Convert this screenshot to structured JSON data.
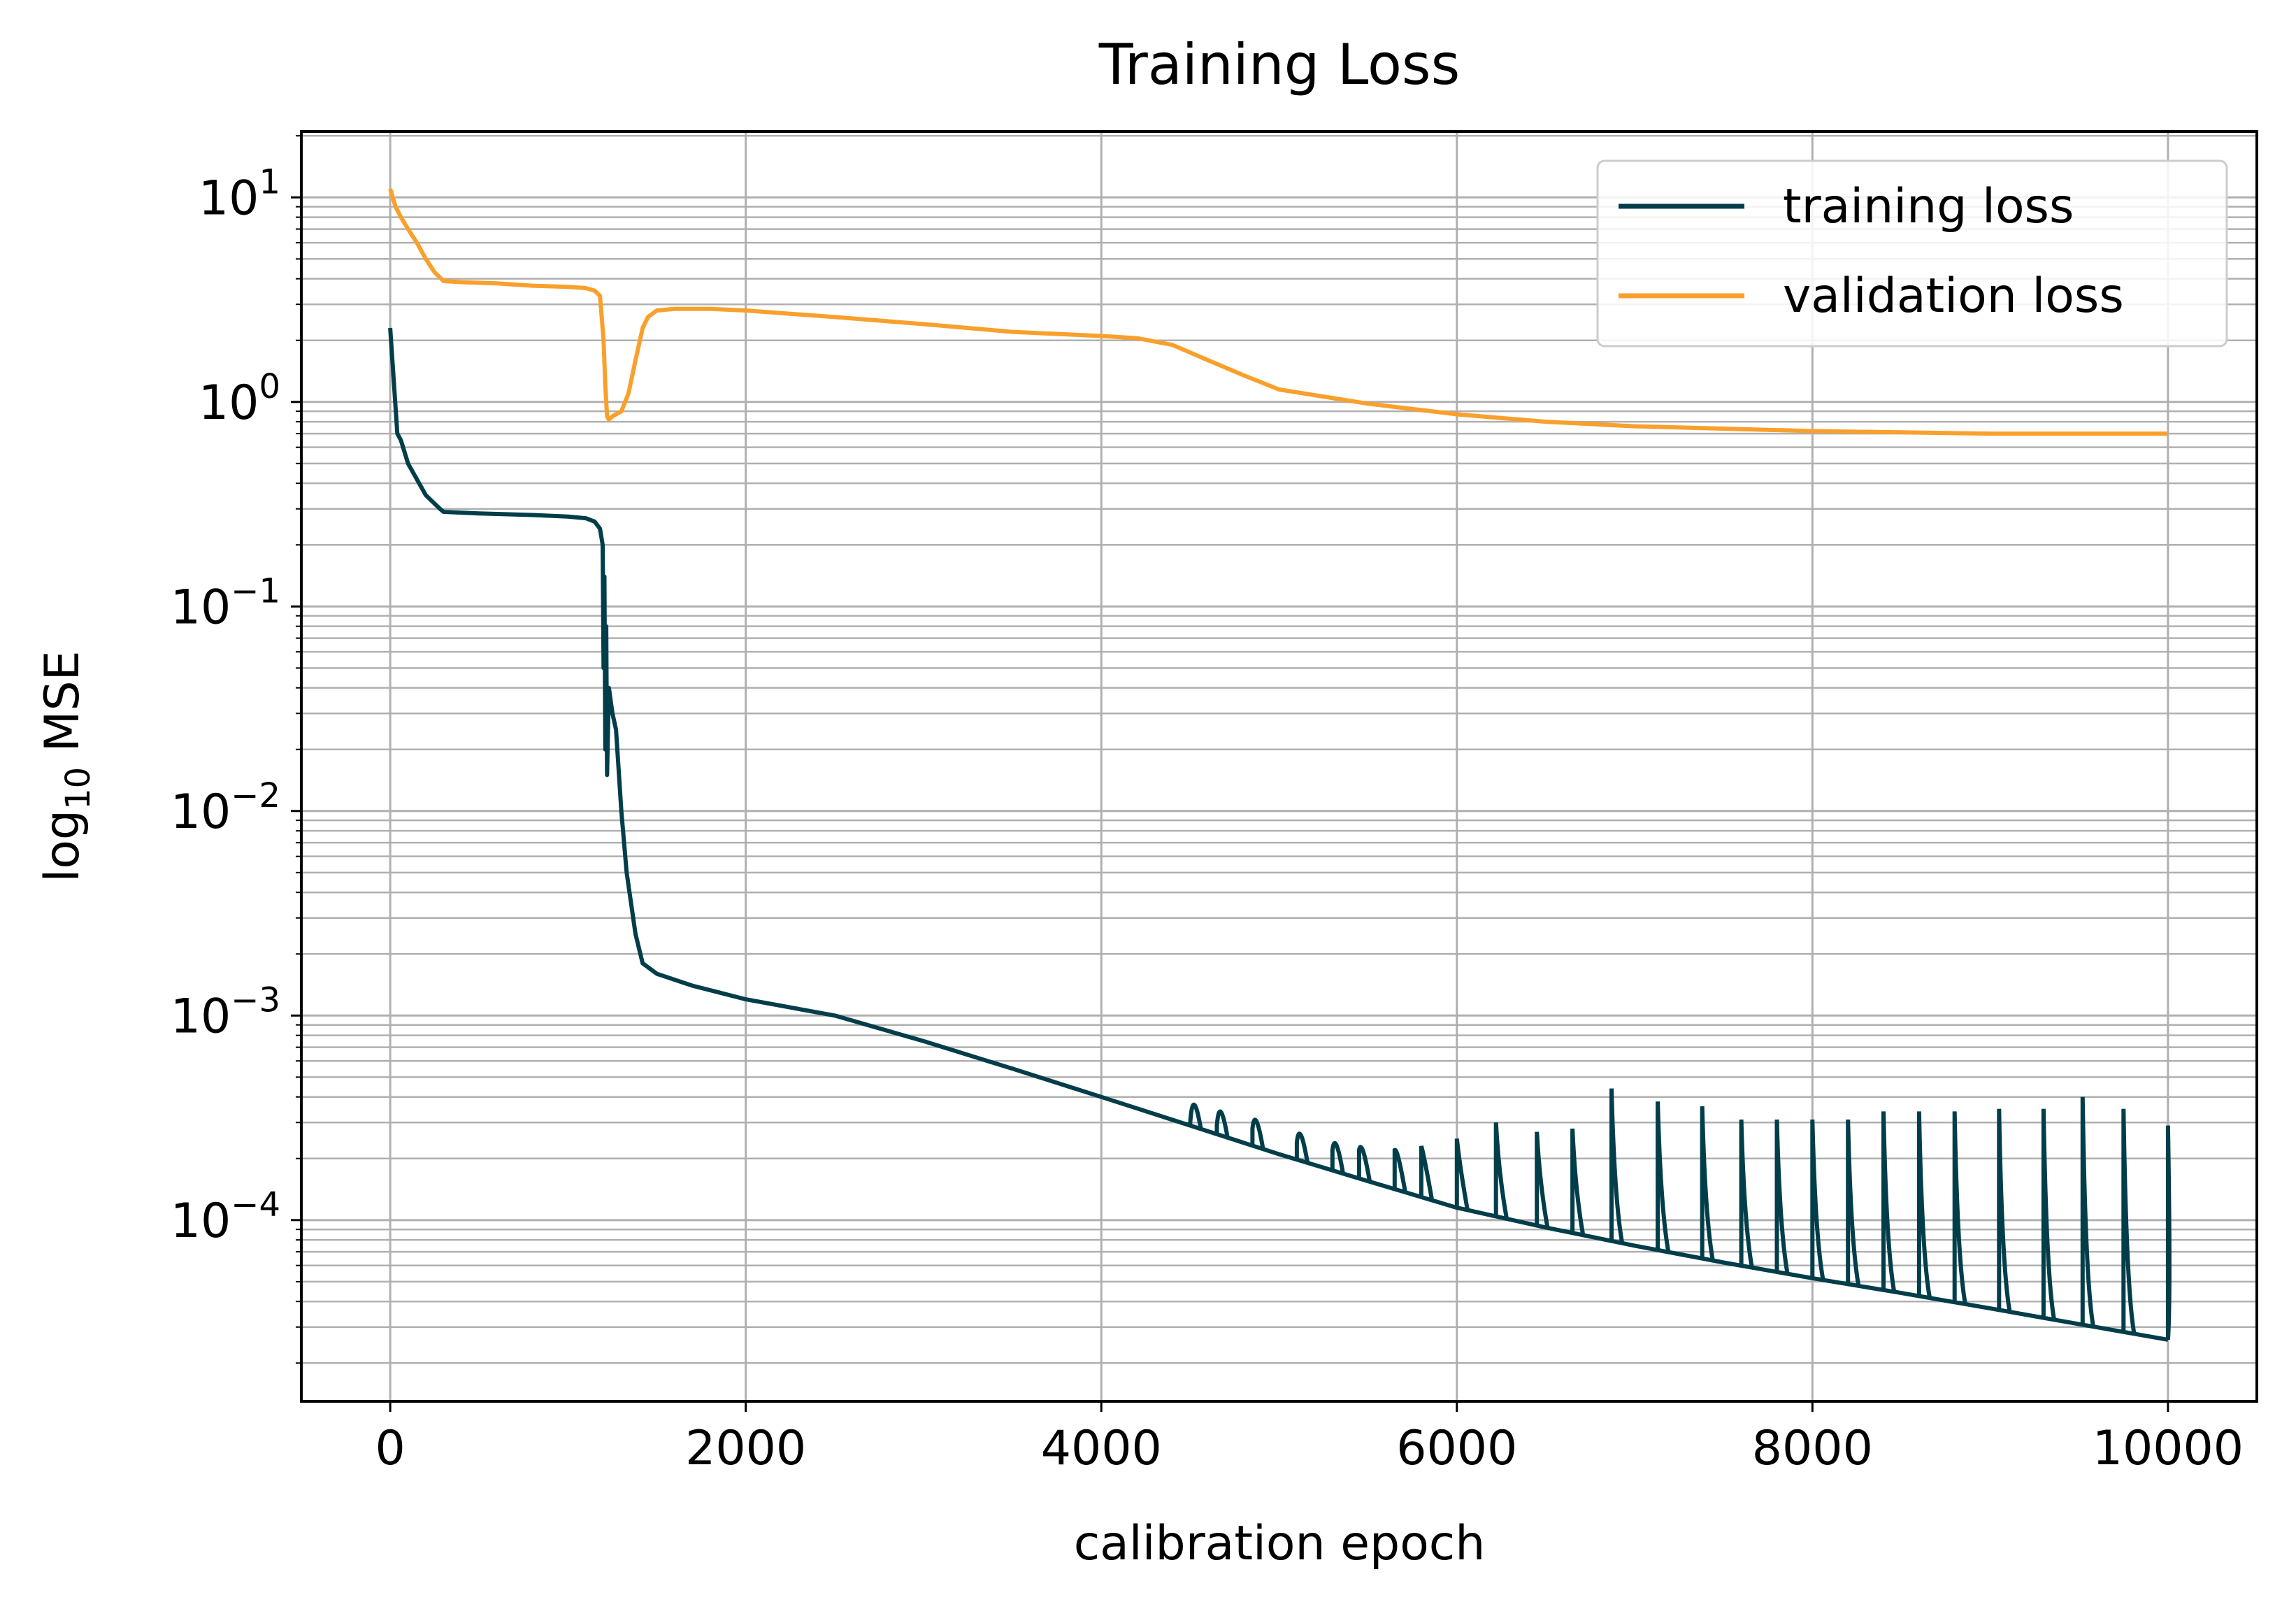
{
  "chart_data": {
    "type": "line",
    "title": "Training Loss",
    "xlabel": "calibration epoch",
    "ylabel_base": "log",
    "ylabel_sub": "10",
    "ylabel_rest": " MSE",
    "yscale": "log",
    "xlim": [
      -500,
      10500
    ],
    "ylim": [
      1.3e-05,
      21
    ],
    "grid": true,
    "legend_position": "top-right",
    "x_ticks": [
      0,
      2000,
      4000,
      6000,
      8000,
      10000
    ],
    "x_tick_labels": [
      "0",
      "2000",
      "4000",
      "6000",
      "8000",
      "10000"
    ],
    "y_ticks": [
      {
        "value": 10,
        "base": "10",
        "exp": "1"
      },
      {
        "value": 1,
        "base": "10",
        "exp": "0"
      },
      {
        "value": 0.1,
        "base": "10",
        "exp": "−1"
      },
      {
        "value": 0.01,
        "base": "10",
        "exp": "−2"
      },
      {
        "value": 0.001,
        "base": "10",
        "exp": "−3"
      },
      {
        "value": 0.0001,
        "base": "10",
        "exp": "−4"
      }
    ],
    "series": [
      {
        "name": "training loss",
        "color": "#023e4a",
        "x": [
          0,
          40,
          60,
          100,
          200,
          280,
          300,
          500,
          800,
          1000,
          1100,
          1150,
          1180,
          1195,
          1200,
          1205,
          1210,
          1215,
          1220,
          1230,
          1250,
          1270,
          1300,
          1330,
          1380,
          1420,
          1500,
          1700,
          2000,
          2500,
          3000,
          3500,
          4000,
          4500,
          5000,
          5500,
          6000,
          6500,
          7000,
          7500,
          8000,
          8500,
          9000,
          9500,
          10000
        ],
        "y": [
          2.3,
          0.7,
          0.65,
          0.5,
          0.35,
          0.3,
          0.29,
          0.285,
          0.28,
          0.275,
          0.27,
          0.26,
          0.24,
          0.2,
          0.05,
          0.14,
          0.02,
          0.08,
          0.015,
          0.04,
          0.03,
          0.025,
          0.01,
          0.005,
          0.0025,
          0.0018,
          0.0016,
          0.0014,
          0.0012,
          0.001,
          0.00075,
          0.00055,
          0.0004,
          0.00029,
          0.00021,
          0.000155,
          0.000115,
          9.2e-05,
          7.5e-05,
          6.2e-05,
          5.2e-05,
          4.4e-05,
          3.7e-05,
          3.1e-05,
          2.6e-05
        ],
        "spikes": [
          {
            "x": 4500,
            "peak": 0.0003
          },
          {
            "x": 4650,
            "peak": 0.00029
          },
          {
            "x": 4850,
            "peak": 0.00028
          },
          {
            "x": 5100,
            "peak": 0.00024
          },
          {
            "x": 5300,
            "peak": 0.00022
          },
          {
            "x": 5450,
            "peak": 0.00022
          },
          {
            "x": 5650,
            "peak": 0.00022
          },
          {
            "x": 5800,
            "peak": 0.00023
          },
          {
            "x": 6000,
            "peak": 0.00025
          },
          {
            "x": 6220,
            "peak": 0.0003
          },
          {
            "x": 6450,
            "peak": 0.00027
          },
          {
            "x": 6650,
            "peak": 0.00028
          },
          {
            "x": 6870,
            "peak": 0.00044
          },
          {
            "x": 7130,
            "peak": 0.00038
          },
          {
            "x": 7380,
            "peak": 0.00036
          },
          {
            "x": 7600,
            "peak": 0.00031
          },
          {
            "x": 7800,
            "peak": 0.00031
          },
          {
            "x": 8000,
            "peak": 0.00031
          },
          {
            "x": 8200,
            "peak": 0.00031
          },
          {
            "x": 8400,
            "peak": 0.00034
          },
          {
            "x": 8600,
            "peak": 0.00034
          },
          {
            "x": 8800,
            "peak": 0.00034
          },
          {
            "x": 9050,
            "peak": 0.00035
          },
          {
            "x": 9300,
            "peak": 0.00035
          },
          {
            "x": 9520,
            "peak": 0.0004
          },
          {
            "x": 9750,
            "peak": 0.00035
          },
          {
            "x": 10000,
            "peak": 0.00029
          }
        ]
      },
      {
        "name": "validation loss",
        "color": "#f9a02c",
        "x": [
          0,
          30,
          60,
          100,
          150,
          200,
          250,
          300,
          400,
          600,
          800,
          1000,
          1100,
          1150,
          1180,
          1200,
          1210,
          1220,
          1230,
          1250,
          1300,
          1340,
          1380,
          1420,
          1450,
          1500,
          1600,
          1800,
          2000,
          2500,
          3000,
          3500,
          4000,
          4200,
          4400,
          4600,
          4800,
          5000,
          5500,
          6000,
          6500,
          7000,
          7500,
          8000,
          8500,
          9000,
          9500,
          10000
        ],
        "y": [
          11,
          9,
          8,
          7,
          6,
          5,
          4.3,
          3.9,
          3.85,
          3.8,
          3.7,
          3.65,
          3.6,
          3.5,
          3.3,
          2.0,
          1.2,
          0.85,
          0.82,
          0.85,
          0.9,
          1.1,
          1.6,
          2.3,
          2.6,
          2.8,
          2.85,
          2.85,
          2.8,
          2.6,
          2.4,
          2.2,
          2.1,
          2.05,
          1.9,
          1.6,
          1.35,
          1.15,
          0.98,
          0.87,
          0.8,
          0.76,
          0.74,
          0.72,
          0.71,
          0.7,
          0.7,
          0.7
        ]
      }
    ]
  }
}
